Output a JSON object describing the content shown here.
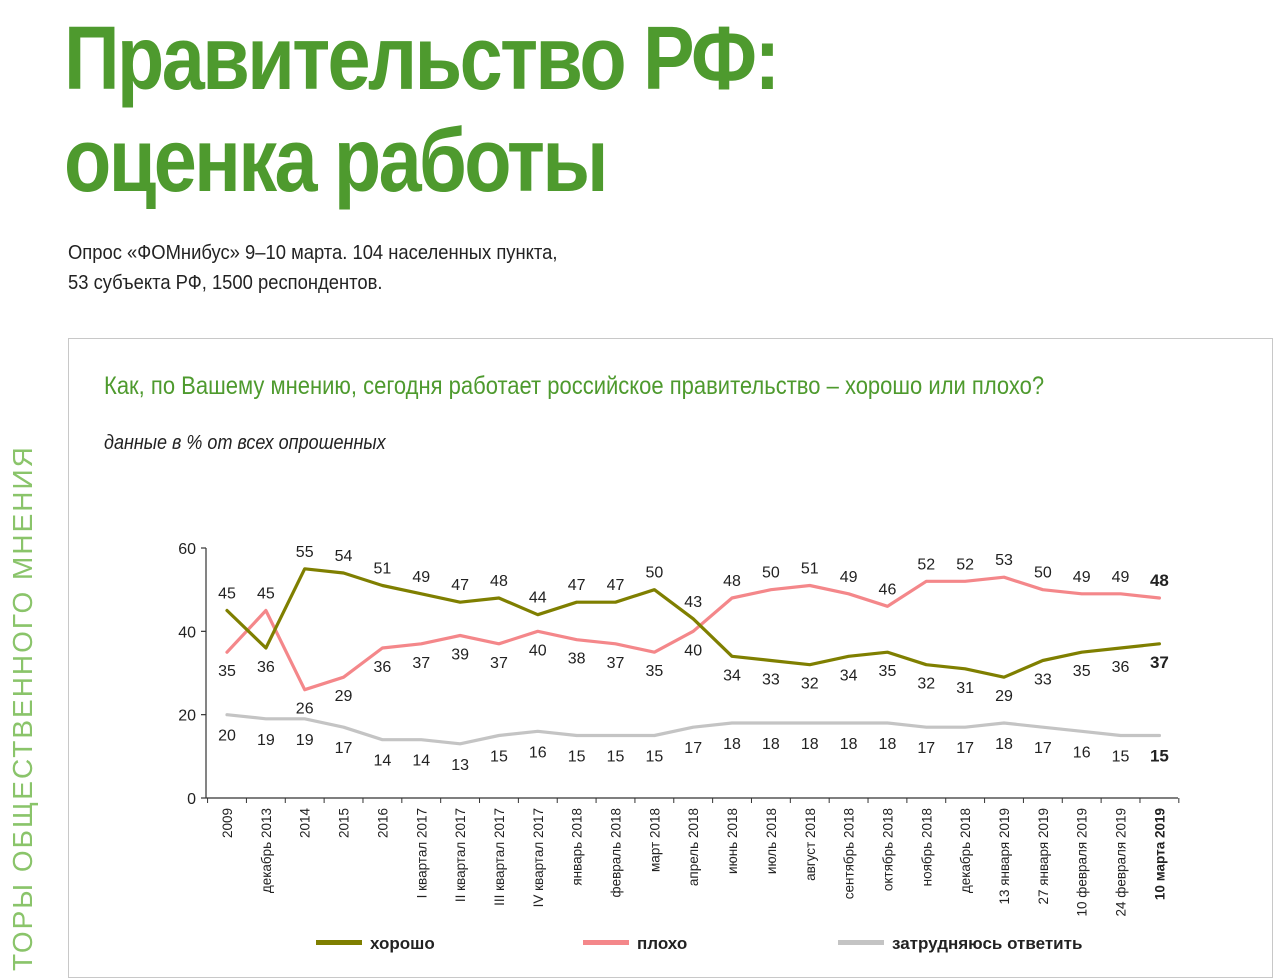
{
  "page": {
    "title_line1": "Правительство РФ:",
    "title_line2": "оценка работы",
    "subtitle_line1": "Опрос «ФОМнибус» 9–10 марта. 104 населенных пункта,",
    "subtitle_line2": "53 субъекта РФ, 1500 респондентов.",
    "side_text": "ТОРЫ ОБЩЕСТВЕННОГО МНЕНИЯ"
  },
  "colors": {
    "title_green": "#4e9a2e",
    "good": "#7f7f00",
    "bad": "#f4878a",
    "unsure": "#c4c4c4"
  },
  "chart_data": {
    "type": "line",
    "title": "Как, по Вашему мнению, сегодня работает российское правительство – хорошо или плохо?",
    "subtitle": "данные в % от всех опрошенных",
    "xlabel": "",
    "ylabel": "",
    "ylim": [
      0,
      60
    ],
    "yticks": [
      0,
      20,
      40,
      60
    ],
    "legend_position": "bottom",
    "categories": [
      "2009",
      "декабрь 2013",
      "2014",
      "2015",
      "2016",
      "I квартал 2017",
      "II квартал 2017",
      "III квартал 2017",
      "IV квартал 2017",
      "январь 2018",
      "февраль 2018",
      "март 2018",
      "апрель 2018",
      "июнь 2018",
      "июль 2018",
      "август 2018",
      "сентябрь 2018",
      "октябрь 2018",
      "ноябрь 2018",
      "декабрь 2018",
      "13 января 2019",
      "27 января 2019",
      "10 февраля 2019",
      "24 февраля 2019",
      "10 марта 2019"
    ],
    "series": [
      {
        "name": "хорошо",
        "key": "good",
        "values": [
          45,
          36,
          55,
          54,
          51,
          49,
          47,
          48,
          44,
          47,
          47,
          50,
          43,
          34,
          33,
          32,
          34,
          35,
          32,
          31,
          29,
          33,
          35,
          36,
          37
        ]
      },
      {
        "name": "плохо",
        "key": "bad",
        "values": [
          35,
          45,
          26,
          29,
          36,
          37,
          39,
          37,
          40,
          38,
          37,
          35,
          40,
          48,
          50,
          51,
          49,
          46,
          52,
          52,
          53,
          50,
          49,
          49,
          48
        ]
      },
      {
        "name": "затрудняюсь ответить",
        "key": "unsure",
        "values": [
          20,
          19,
          19,
          17,
          14,
          14,
          13,
          15,
          16,
          15,
          15,
          15,
          17,
          18,
          18,
          18,
          18,
          18,
          17,
          17,
          18,
          17,
          16,
          15,
          15
        ]
      }
    ]
  }
}
